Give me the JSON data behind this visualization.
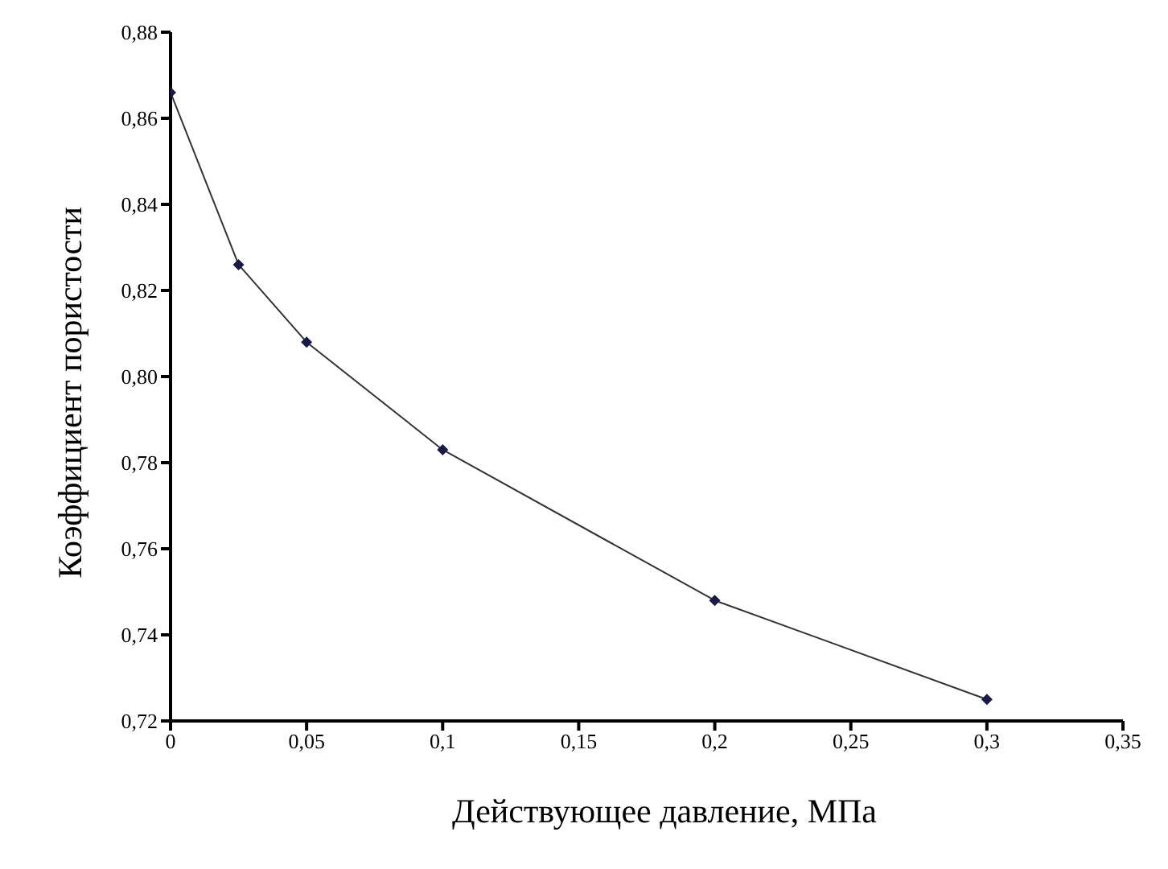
{
  "chart_data": {
    "type": "line",
    "xlabel": "Действующее давление, МПа",
    "ylabel": "Коэффициент пористости",
    "x": [
      0,
      0.025,
      0.05,
      0.1,
      0.2,
      0.3
    ],
    "series": [
      {
        "color": "#1a1a4a",
        "values": [
          0.866,
          0.826,
          0.808,
          0.783,
          0.748,
          0.725
        ]
      }
    ],
    "xlim": [
      0,
      0.35
    ],
    "xticks": [
      0,
      {
        "value": 0.05,
        "label": "0,05"
      },
      {
        "value": 0.1,
        "label": "0,1"
      },
      {
        "value": 0.15,
        "label": "0,15"
      },
      {
        "value": 0.2,
        "label": "0,2"
      },
      {
        "value": 0.25,
        "label": "0,25"
      },
      {
        "value": 0.3,
        "label": "0,3"
      },
      {
        "value": 0.35,
        "label": "0,35"
      }
    ],
    "ylim": [
      0.72,
      0.88
    ],
    "yticks": [
      {
        "value": 0.72,
        "label": "0,72"
      },
      {
        "value": 0.74,
        "label": "0,74"
      },
      {
        "value": 0.76,
        "label": "0,76"
      },
      {
        "value": 0.78,
        "label": "0,78"
      },
      {
        "value": 0.8,
        "label": "0,80"
      },
      {
        "value": 0.82,
        "label": "0,82"
      },
      {
        "value": 0.84,
        "label": "0,84"
      },
      {
        "value": 0.86,
        "label": "0,86"
      },
      {
        "value": 0.88,
        "label": "0,88"
      }
    ],
    "grid": false,
    "legend": false,
    "marker": "diamond",
    "line_style": "solid"
  }
}
